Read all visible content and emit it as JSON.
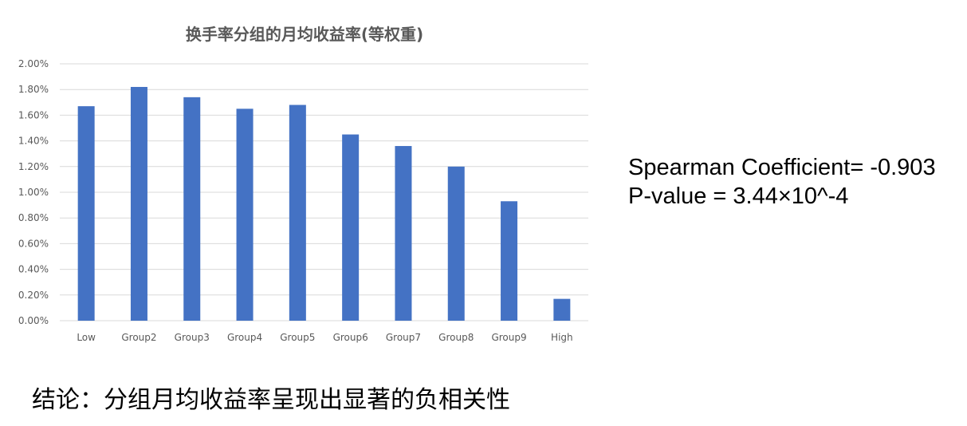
{
  "chart_data": {
    "type": "bar",
    "title": "换手率分组的月均收益率(等权重)",
    "categories": [
      "Low",
      "Group2",
      "Group3",
      "Group4",
      "Group5",
      "Group6",
      "Group7",
      "Group8",
      "Group9",
      "High"
    ],
    "series": [
      {
        "values": [
          1.67,
          1.82,
          1.74,
          1.65,
          1.68,
          1.45,
          1.36,
          1.2,
          0.93,
          0.17
        ]
      }
    ],
    "ylim": [
      0,
      2.0
    ],
    "yticks": [
      "0.00%",
      "0.20%",
      "0.40%",
      "0.60%",
      "0.80%",
      "1.00%",
      "1.20%",
      "1.40%",
      "1.60%",
      "1.80%",
      "2.00%"
    ],
    "xlabel": "",
    "ylabel": "",
    "grid": true,
    "bar_color": "#4472C4",
    "grid_color": "#D9D9D9"
  },
  "stats": {
    "spearman": "Spearman Coefficient= -0.903",
    "pvalue": "P-value = 3.44×10^-4"
  },
  "conclusion": "结论：分组月均收益率呈现出显著的负相关性"
}
